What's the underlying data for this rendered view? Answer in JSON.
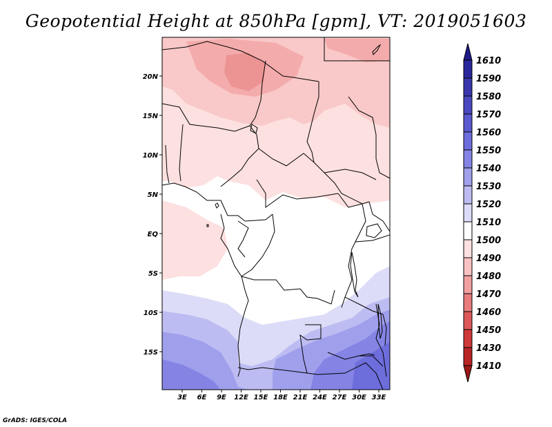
{
  "title": "Geopotential Height at 850hPa [gpm], VT: 2019051603",
  "credit": "GrADS: IGES/COLA",
  "map": {
    "variable": "Geopotential Height",
    "level": "850hPa",
    "units": "gpm",
    "valid_time": "2019051603",
    "lat_labels": [
      "20N",
      "15N",
      "10N",
      "5N",
      "EQ",
      "5S",
      "10S",
      "15S"
    ],
    "lon_labels": [
      "3E",
      "6E",
      "9E",
      "12E",
      "15E",
      "18E",
      "21E",
      "24E",
      "27E",
      "30E",
      "33E"
    ]
  },
  "colorbar": {
    "levels": [
      "1610",
      "1590",
      "1580",
      "1570",
      "1560",
      "1550",
      "1540",
      "1530",
      "1520",
      "1510",
      "1500",
      "1490",
      "1480",
      "1470",
      "1460",
      "1450",
      "1430",
      "1410"
    ],
    "colors": [
      "#1e1a8a",
      "#2a279c",
      "#3a37ae",
      "#4a48c0",
      "#5b59d0",
      "#6e6ddc",
      "#8584e4",
      "#a09fec",
      "#bdbcf2",
      "#dcdcf8",
      "#ffffff",
      "#fde0e0",
      "#f9c2c2",
      "#f2a0a0",
      "#e87b7b",
      "#dd5959",
      "#cf3939",
      "#b82525",
      "#9c1717"
    ]
  }
}
